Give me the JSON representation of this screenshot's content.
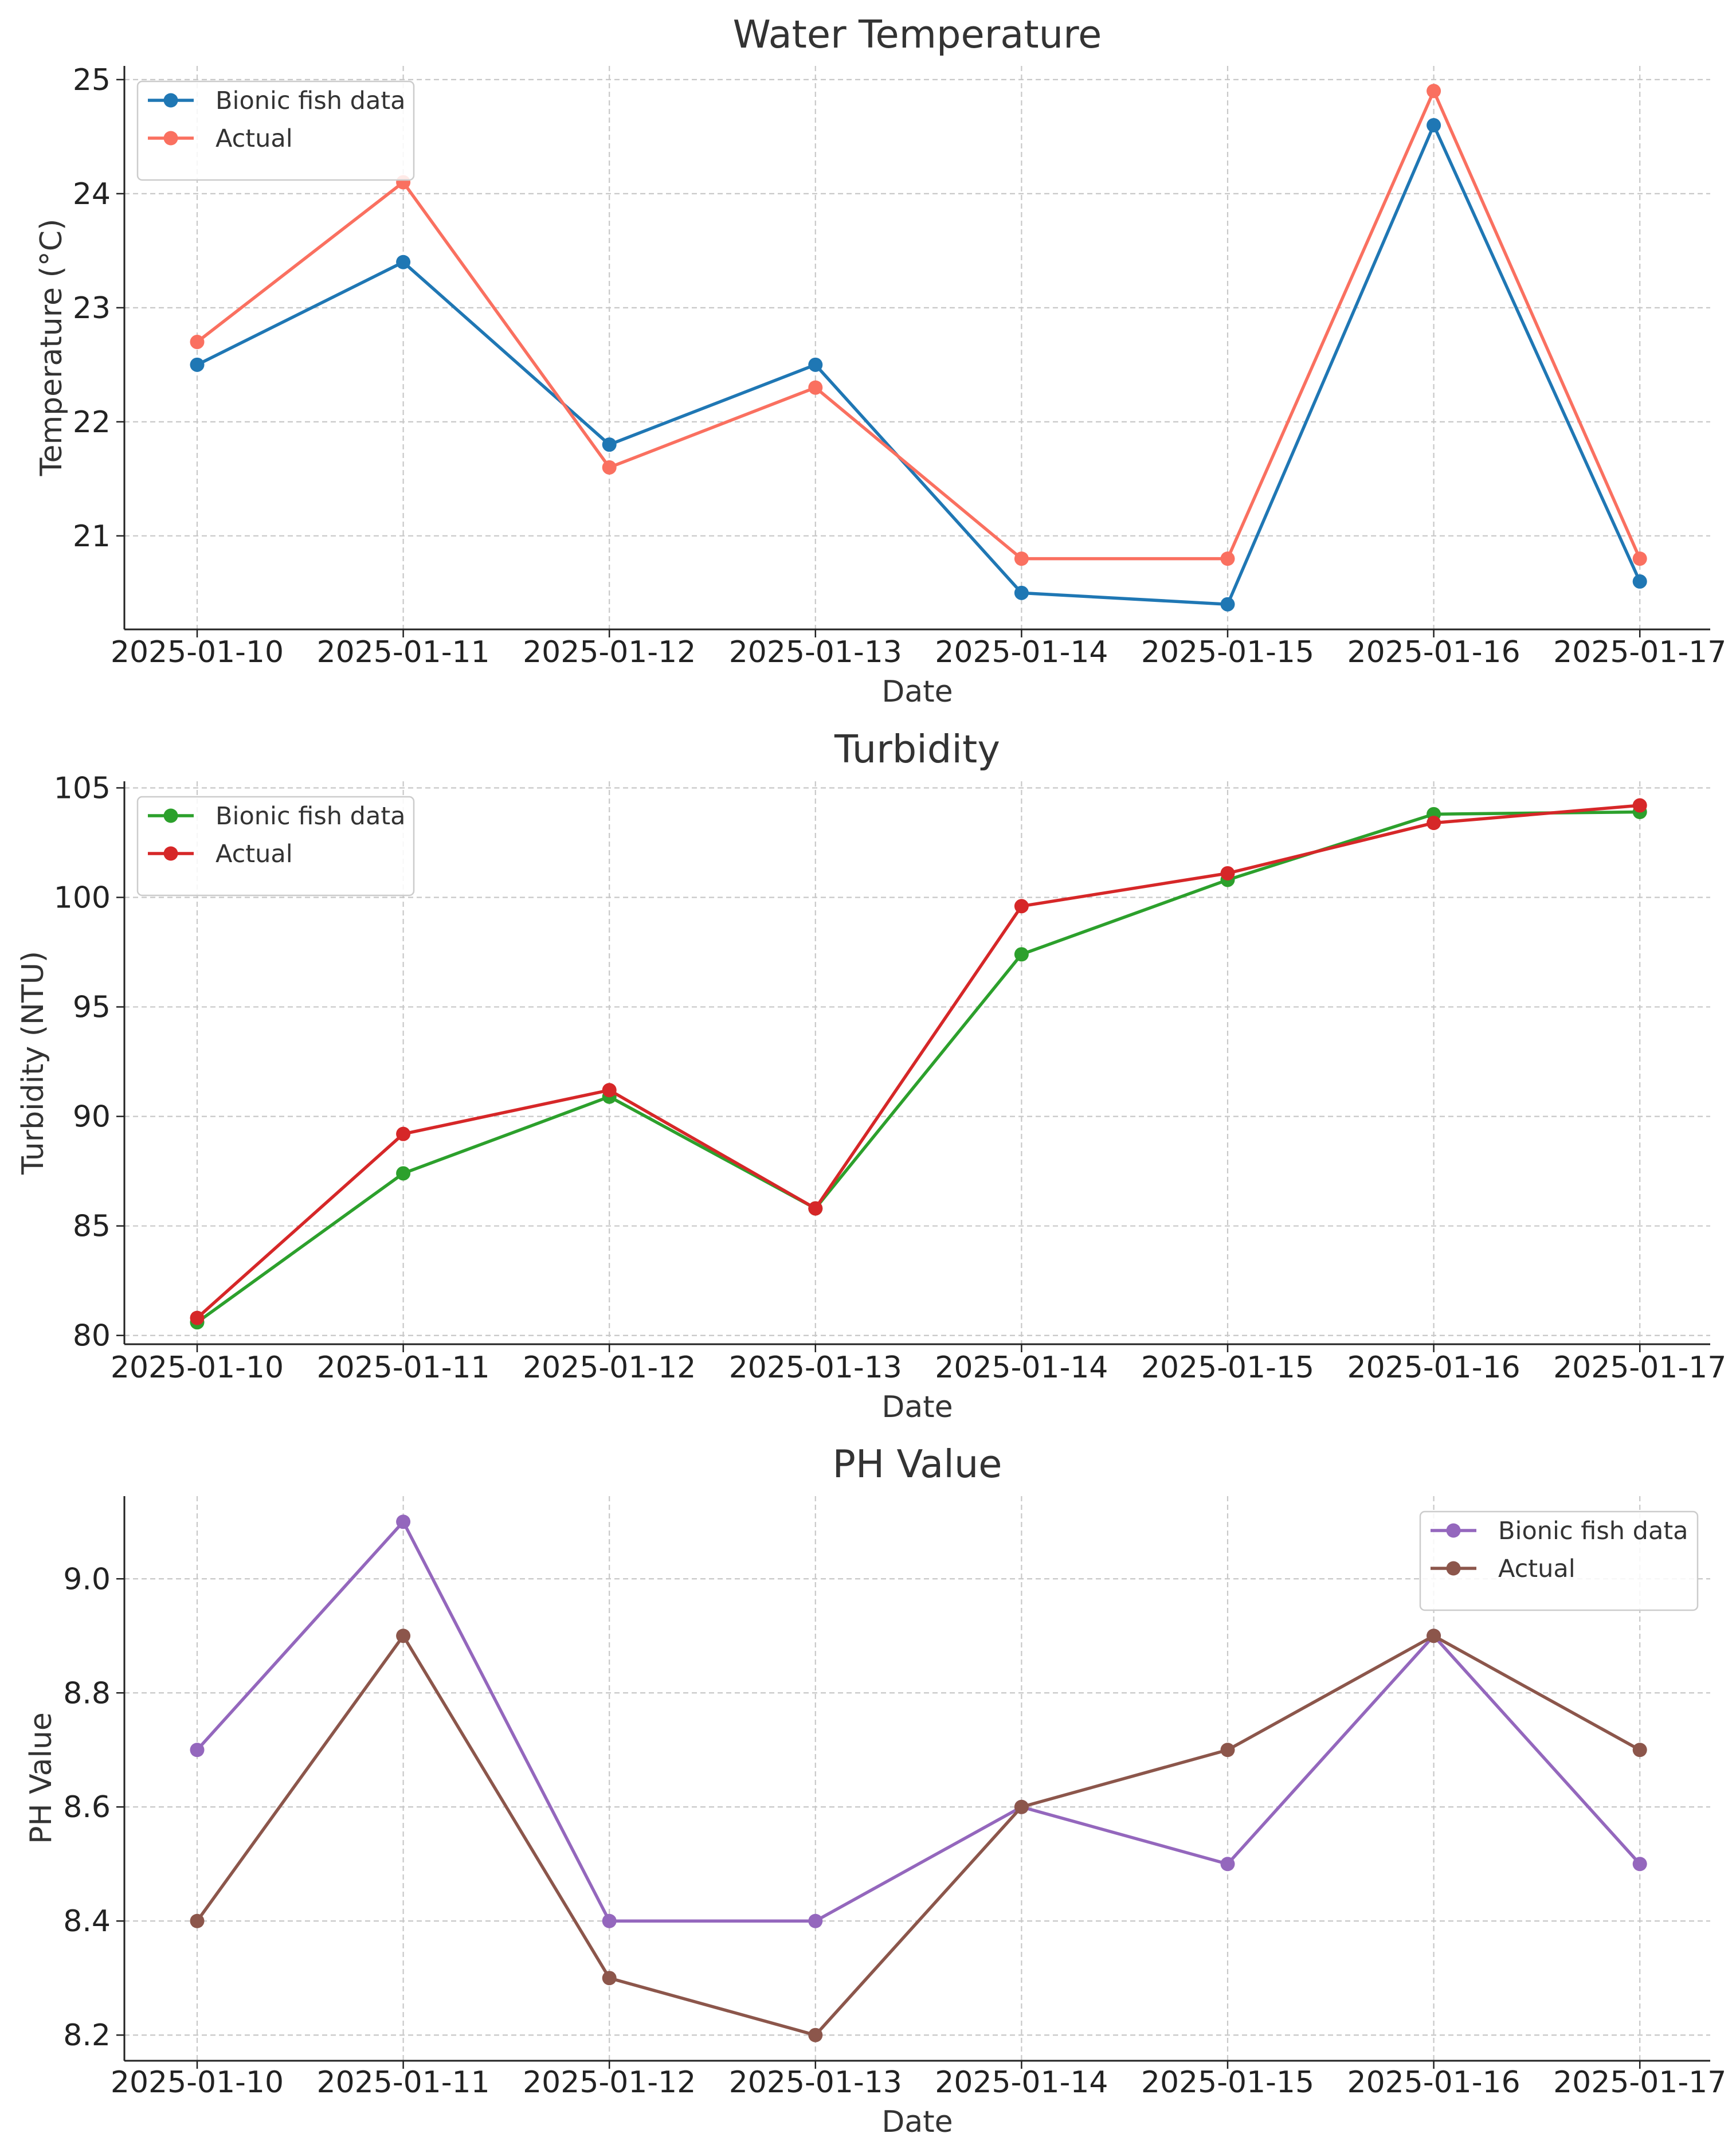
{
  "chart_data": [
    {
      "type": "line",
      "title": "Water Temperature",
      "xlabel": "Date",
      "ylabel": "Temperature (°C)",
      "categories": [
        "2025-01-10",
        "2025-01-11",
        "2025-01-12",
        "2025-01-13",
        "2025-01-14",
        "2025-01-15",
        "2025-01-16",
        "2025-01-17"
      ],
      "yticks": [
        21,
        22,
        23,
        24,
        25
      ],
      "ytick_labels": [
        "21",
        "22",
        "23",
        "24",
        "25"
      ],
      "ylim": [
        20.18,
        25.12
      ],
      "grid": true,
      "legend_position": "top-left",
      "series": [
        {
          "name": "Bionic fish data",
          "color": "#1f77b4",
          "values": [
            22.5,
            23.4,
            21.8,
            22.5,
            20.5,
            20.4,
            24.6,
            20.6
          ]
        },
        {
          "name": "Actual",
          "color": "#fa7060",
          "values": [
            22.7,
            24.1,
            21.6,
            22.3,
            20.8,
            20.8,
            24.9,
            20.8
          ]
        }
      ]
    },
    {
      "type": "line",
      "title": "Turbidity",
      "xlabel": "Date",
      "ylabel": "Turbidity (NTU)",
      "categories": [
        "2025-01-10",
        "2025-01-11",
        "2025-01-12",
        "2025-01-13",
        "2025-01-14",
        "2025-01-15",
        "2025-01-16",
        "2025-01-17"
      ],
      "yticks": [
        80,
        85,
        90,
        95,
        100,
        105
      ],
      "ytick_labels": [
        "80",
        "85",
        "90",
        "95",
        "100",
        "105"
      ],
      "ylim": [
        79.6,
        105.3
      ],
      "grid": true,
      "legend_position": "top-left",
      "series": [
        {
          "name": "Bionic fish data",
          "color": "#2ca02c",
          "values": [
            80.6,
            87.4,
            90.9,
            85.8,
            97.4,
            100.8,
            103.8,
            103.9
          ]
        },
        {
          "name": "Actual",
          "color": "#d62728",
          "values": [
            80.8,
            89.2,
            91.2,
            85.8,
            99.6,
            101.1,
            103.4,
            104.2
          ]
        }
      ]
    },
    {
      "type": "line",
      "title": "PH Value",
      "xlabel": "Date",
      "ylabel": "PH Value",
      "categories": [
        "2025-01-10",
        "2025-01-11",
        "2025-01-12",
        "2025-01-13",
        "2025-01-14",
        "2025-01-15",
        "2025-01-16",
        "2025-01-17"
      ],
      "yticks": [
        8.2,
        8.4,
        8.6,
        8.8,
        9.0
      ],
      "ytick_labels": [
        "8.2",
        "8.4",
        "8.6",
        "8.8",
        "9.0"
      ],
      "ylim": [
        8.155,
        9.145
      ],
      "grid": true,
      "legend_position": "top-right",
      "series": [
        {
          "name": "Bionic fish data",
          "color": "#9467bd",
          "values": [
            8.7,
            9.1,
            8.4,
            8.4,
            8.6,
            8.5,
            8.9,
            8.5
          ]
        },
        {
          "name": "Actual",
          "color": "#8c564b",
          "values": [
            8.4,
            8.9,
            8.3,
            8.2,
            8.6,
            8.7,
            8.9,
            8.7
          ]
        }
      ]
    }
  ]
}
